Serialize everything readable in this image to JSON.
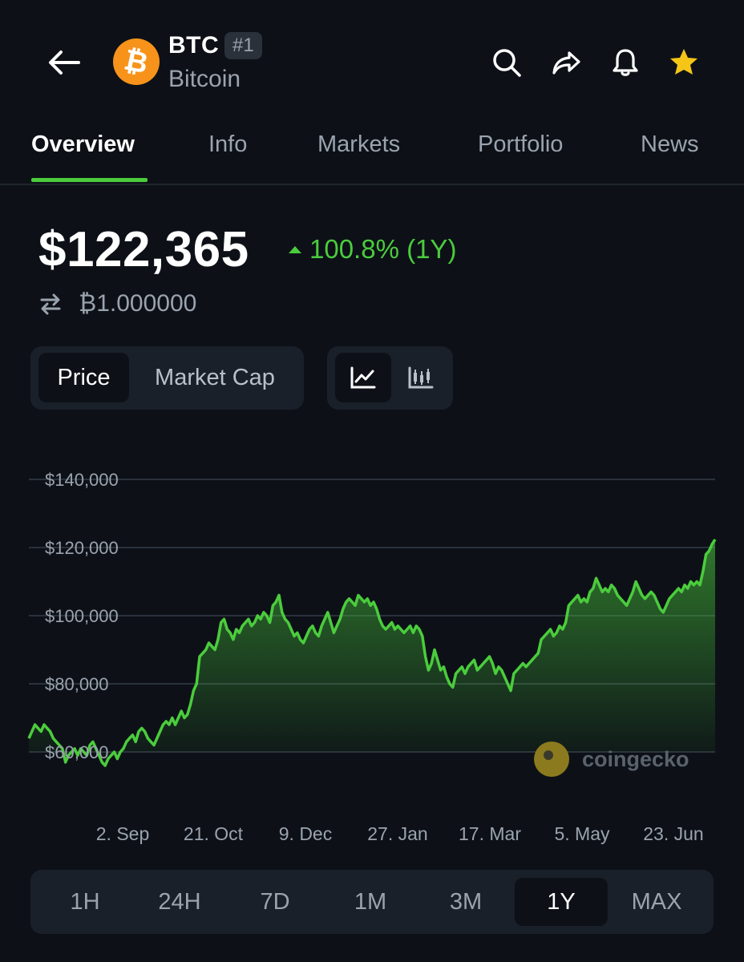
{
  "header": {
    "back_icon": "arrow-left-icon",
    "coin_logo_icon": "bitcoin-icon",
    "symbol": "BTC",
    "rank": "#1",
    "name": "Bitcoin",
    "actions": [
      "search-icon",
      "share-icon",
      "bell-icon",
      "star-icon"
    ],
    "star_color": "#f5c518"
  },
  "tabs": [
    {
      "label": "Overview",
      "active": true
    },
    {
      "label": "Info",
      "active": false
    },
    {
      "label": "Markets",
      "active": false
    },
    {
      "label": "Portfolio",
      "active": false
    },
    {
      "label": "News",
      "active": false
    }
  ],
  "price": {
    "value": "$122,365",
    "change": "100.8% (1Y)",
    "change_direction": "up",
    "btc_value": "₿1.000000",
    "swap_icon": "swap-arrows-icon"
  },
  "toggles": {
    "metric": [
      {
        "label": "Price",
        "active": true
      },
      {
        "label": "Market Cap",
        "active": false
      }
    ],
    "chart_type": [
      {
        "icon": "line-chart-icon",
        "active": true
      },
      {
        "icon": "candlestick-icon",
        "active": false
      }
    ]
  },
  "chart_data": {
    "type": "area",
    "y_ticks": [
      "$140,000",
      "$120,000",
      "$100,000",
      "$80,000",
      "$60,000"
    ],
    "ylim": [
      60000,
      140000
    ],
    "x_ticks": [
      "2. Sep",
      "21. Oct",
      "9. Dec",
      "27. Jan",
      "17. Mar",
      "5. May",
      "23. Jun"
    ],
    "grid": true,
    "color": "#4bcc3d",
    "series": [
      {
        "values": [
          64000,
          66000,
          68000,
          67000,
          66000,
          68000,
          67000,
          66000,
          64000,
          63000,
          62000,
          61000,
          57000,
          59000,
          60000,
          61000,
          59000,
          61000,
          60000,
          59000,
          62000,
          63000,
          61000,
          59000,
          57000,
          56000,
          58000,
          59000,
          60000,
          58000,
          60000,
          61000,
          63000,
          64000,
          65000,
          63000,
          66000,
          67000,
          66000,
          64000,
          63000,
          62000,
          64000,
          66000,
          68000,
          69000,
          68000,
          70000,
          68000,
          70000,
          72000,
          70000,
          71000,
          74000,
          78000,
          80000,
          88000,
          89000,
          90000,
          92000,
          91000,
          90000,
          93000,
          98000,
          99000,
          96000,
          95000,
          93000,
          96000,
          95000,
          97000,
          98000,
          99000,
          97000,
          98000,
          100000,
          99000,
          101000,
          100000,
          98000,
          103000,
          104000,
          106000,
          101000,
          99000,
          98000,
          96000,
          94000,
          95000,
          93000,
          92000,
          94000,
          96000,
          97000,
          95000,
          94000,
          97000,
          99000,
          101000,
          98000,
          95000,
          97000,
          99000,
          102000,
          104000,
          105000,
          104000,
          103000,
          106000,
          105000,
          104000,
          105000,
          103000,
          104000,
          102000,
          99000,
          97000,
          96000,
          97000,
          98000,
          96000,
          97000,
          96000,
          95000,
          96000,
          97000,
          95000,
          97000,
          96000,
          94000,
          88000,
          84000,
          86000,
          90000,
          87000,
          84000,
          85000,
          82000,
          80000,
          79000,
          83000,
          84000,
          85000,
          83000,
          85000,
          86000,
          87000,
          84000,
          85000,
          86000,
          87000,
          88000,
          86000,
          83000,
          85000,
          84000,
          82000,
          80000,
          78000,
          83000,
          84000,
          85000,
          86000,
          85000,
          86000,
          87000,
          88000,
          89000,
          93000,
          94000,
          95000,
          96000,
          94000,
          95000,
          97000,
          96000,
          98000,
          103000,
          104000,
          105000,
          106000,
          104000,
          105000,
          104000,
          107000,
          108000,
          111000,
          109000,
          107000,
          108000,
          107000,
          109000,
          108000,
          106000,
          105000,
          104000,
          103000,
          105000,
          107000,
          110000,
          108000,
          106000,
          105000,
          106000,
          107000,
          106000,
          104000,
          102000,
          101000,
          103000,
          105000,
          106000,
          107000,
          108000,
          107000,
          109000,
          108000,
          110000,
          109000,
          110000,
          109000,
          113000,
          118000,
          119000,
          121000,
          122365
        ]
      }
    ]
  },
  "watermark": {
    "text": "coingecko",
    "icon": "coingecko-logo-icon"
  },
  "ranges": [
    {
      "label": "1H",
      "active": false
    },
    {
      "label": "24H",
      "active": false
    },
    {
      "label": "7D",
      "active": false
    },
    {
      "label": "1M",
      "active": false
    },
    {
      "label": "3M",
      "active": false
    },
    {
      "label": "1Y",
      "active": true
    },
    {
      "label": "MAX",
      "active": false
    }
  ]
}
